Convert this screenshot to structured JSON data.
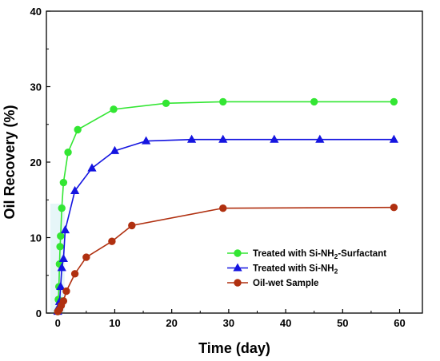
{
  "chart_data": {
    "type": "line",
    "xlabel": "Time (day)",
    "ylabel": "Oil Recovery (%)",
    "xlim": [
      -2,
      64
    ],
    "ylim": [
      0,
      40
    ],
    "xticks": [
      0,
      10,
      20,
      30,
      40,
      50,
      60
    ],
    "yticks": [
      0,
      10,
      20,
      30,
      40
    ],
    "grid": false,
    "legend_position": "bottom-right",
    "series": [
      {
        "name": "Treated with Si-NH",
        "name_sub": "2",
        "name_suffix": "-Surfactant",
        "color": "#33e633",
        "marker": "circle",
        "x": [
          0,
          0.1,
          0.2,
          0.3,
          0.4,
          0.5,
          0.7,
          1.0,
          1.8,
          3.5,
          9.8,
          19,
          29,
          45,
          59
        ],
        "y": [
          0.2,
          1.8,
          3.5,
          6.5,
          8.8,
          10.2,
          13.9,
          17.3,
          21.3,
          24.3,
          27.0,
          27.8,
          28.0,
          28.0,
          28.0
        ]
      },
      {
        "name": "Treated with Si-NH",
        "name_sub": "2",
        "name_suffix": "",
        "color": "#1515e0",
        "marker": "triangle",
        "x": [
          0,
          0.15,
          0.3,
          0.5,
          0.7,
          1.0,
          1.3,
          3.0,
          6.0,
          10.0,
          15.5,
          23.5,
          29,
          38,
          46,
          59
        ],
        "y": [
          0.2,
          0.8,
          1.5,
          3.5,
          6.0,
          7.2,
          11.0,
          16.2,
          19.2,
          21.5,
          22.8,
          23.0,
          23.0,
          23.0,
          23.0,
          23.0
        ]
      },
      {
        "name": "Oil-wet Sample",
        "name_sub": "",
        "name_suffix": "",
        "color": "#b03010",
        "marker": "circle",
        "x": [
          0,
          0.3,
          0.6,
          1.0,
          1.5,
          3.0,
          5.0,
          9.5,
          13.0,
          29.0,
          59.0
        ],
        "y": [
          0.2,
          0.5,
          1.0,
          1.6,
          2.9,
          5.2,
          7.4,
          9.5,
          11.6,
          13.9,
          14.0
        ]
      }
    ]
  }
}
